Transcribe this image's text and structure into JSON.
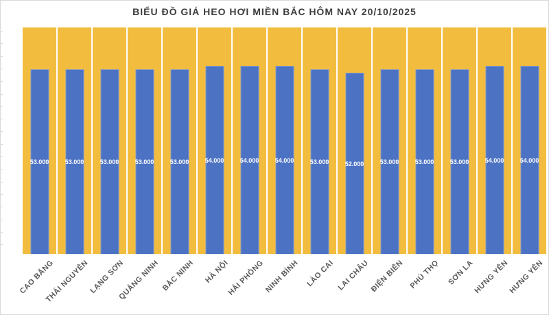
{
  "page": {
    "title": "BIỂU ĐỒ GIÁ HEO HƠI MIỀN BẮC HÔM NAY 20/10/2025"
  },
  "colors": {
    "canvas_bg": "#ffffff",
    "canvas_border": "#d9d9d9",
    "plot_bg": "#f2bc3e",
    "bar": "#4c72c3",
    "bar_border": "#8199d1",
    "separator": "#ffffff",
    "title_text": "#3d3d3d",
    "axis_label_text": "#595959",
    "data_label_text": "#ffffff",
    "tick": "#dcdcdc"
  },
  "chart_data": {
    "type": "bar",
    "title": "BIỂU ĐỒ GIÁ HEO HƠI MIỀN BẮC HÔM NAY 20/10/2025",
    "categories": [
      "CAO BẰNG",
      "THÁI NGUYÊN",
      "LẠNG SƠN",
      "QUẢNG NINH",
      "BẮC NINH",
      "HÀ NỘI",
      "HẢI PHÒNG",
      "NINH BÌNH",
      "LÀO CAI",
      "LAI CHÂU",
      "ĐIỆN BIÊN",
      "PHÚ THỌ",
      "SƠN LA",
      "HƯNG YÊN",
      "HƯNG YÊN"
    ],
    "values": [
      53000,
      53000,
      53000,
      53000,
      53000,
      54000,
      54000,
      54000,
      53000,
      52000,
      53000,
      53000,
      53000,
      54000,
      54000
    ],
    "value_labels": [
      "53.000",
      "53.000",
      "53.000",
      "53.000",
      "53.000",
      "54.000",
      "54.000",
      "54.000",
      "53.000",
      "52.000",
      "53.000",
      "53.000",
      "53.000",
      "54.000",
      "54.000"
    ],
    "xlabel": "",
    "ylabel": "",
    "ylim": [
      0,
      65000
    ],
    "legend": "none",
    "grid": "white vertical separators between category slots",
    "plot_background": "solid gold fill",
    "data_label_position": "center of bar",
    "x_tick_rotation_deg": 45
  }
}
